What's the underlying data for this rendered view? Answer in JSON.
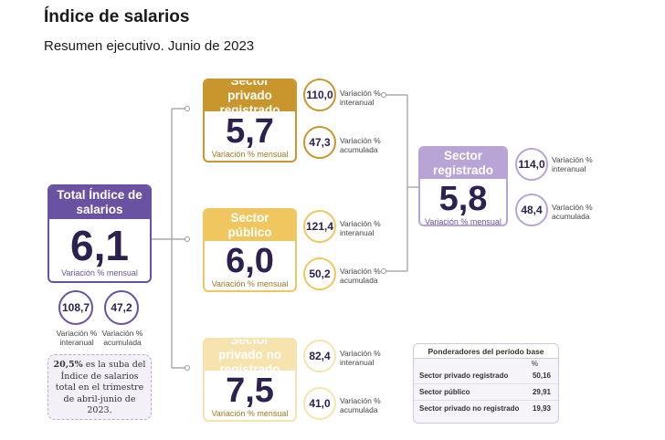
{
  "title": "Índice de salarios",
  "subtitle": "Resumen ejecutivo. Junio de 2023",
  "colors": {
    "purple": "#6a52a3",
    "light_purple": "#b9a4d6",
    "gold": "#c9962d",
    "yellow": "#f0c75e",
    "light_yellow": "#f6e3ad"
  },
  "total": {
    "title": "Total Índice de salarios",
    "value": "6,1",
    "unit": "Variación % mensual",
    "interanual": "108,7",
    "interanual_label": "Variación % interanual",
    "acumulada": "47,2",
    "acumulada_label": "Variación % acumulada"
  },
  "privado_registrado": {
    "title": "Sector privado registrado",
    "value": "5,7",
    "unit": "Variación % mensual",
    "interanual": "110,0",
    "interanual_label": "Variación % interanual",
    "acumulada": "47,3",
    "acumulada_label": "Variación % acumulada"
  },
  "publico": {
    "title": "Sector público",
    "value": "6,0",
    "unit": "Variación % mensual",
    "interanual": "121,4",
    "interanual_label": "Variación % interanual",
    "acumulada": "50,2",
    "acumulada_label": "Variación % acumulada"
  },
  "no_registrado": {
    "title": "Sector privado no registrado",
    "value": "7,5",
    "unit": "Variación % mensual",
    "interanual": "82,4",
    "interanual_label": "Variación % interanual",
    "acumulada": "41,0",
    "acumulada_label": "Variación % acumulada"
  },
  "registrado": {
    "title": "Sector registrado",
    "value": "5,8",
    "unit": "Variación % mensual",
    "interanual": "114,0",
    "interanual_label": "Variación % interanual",
    "acumulada": "48,4",
    "acumulada_label": "Variación % acumulada"
  },
  "note": {
    "highlight": "20,5%",
    "text": " es la suba del Índice de salarios total en el trimestre de abril-junio de 2023."
  },
  "weights": {
    "title": "Ponderadores del período base",
    "col_header": "%",
    "rows": [
      {
        "label": "Sector privado registrado",
        "value": "50,16"
      },
      {
        "label": "Sector público",
        "value": "29,91"
      },
      {
        "label": "Sector privado no registrado",
        "value": "19,93"
      }
    ]
  }
}
